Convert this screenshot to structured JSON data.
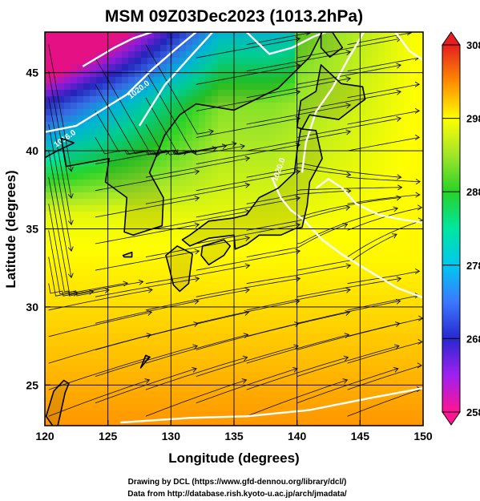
{
  "chart_data": {
    "type": "heatmap",
    "title": "MSM 09Z03Dec2023 (1013.2hPa)",
    "xlabel": "Longitude (degrees)",
    "ylabel": "Latitude  (degrees)",
    "xlim": [
      120,
      150
    ],
    "ylim": [
      22.4,
      47.6
    ],
    "x_ticks": [
      "120",
      "125",
      "130",
      "135",
      "140",
      "145",
      "150"
    ],
    "y_ticks": [
      "25",
      "30",
      "35",
      "40",
      "45"
    ],
    "colorbar": {
      "min": 258,
      "max": 308,
      "labels": [
        "308",
        "298",
        "288",
        "278",
        "268",
        "258"
      ],
      "label_values": [
        308,
        298,
        288,
        278,
        268,
        258
      ],
      "colors": [
        "#ff1493",
        "#a020f0",
        "#2828d0",
        "#3c78ff",
        "#00c8f0",
        "#00e6a0",
        "#28d228",
        "#a0e628",
        "#ffff00",
        "#ffbe00",
        "#ff7800",
        "#e61e1e"
      ]
    },
    "isobar_labels": [
      "1016.0",
      "1020.0",
      "1020.0"
    ],
    "grid": true,
    "overlays": [
      "streamlines",
      "white isobars",
      "coastlines"
    ]
  },
  "credits": {
    "line1": "Drawing by DCL (https://www.gfd-dennou.org/library/dcl/)",
    "line2": "Data from http://database.rish.kyoto-u.ac.jp/arch/jmadata/"
  }
}
